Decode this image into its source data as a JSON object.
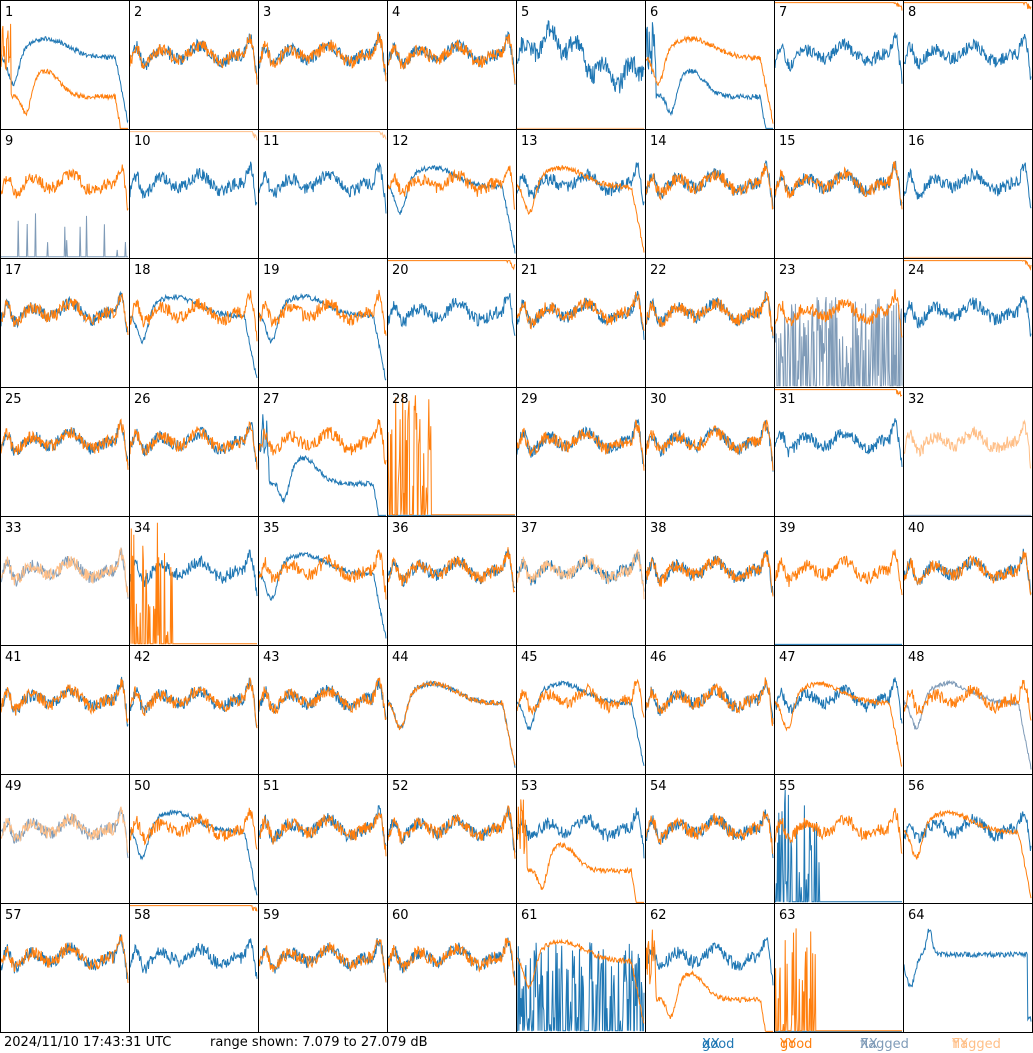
{
  "footer": {
    "timestamp": "2024/11/10 17:43:31 UTC",
    "range_text": "range shown: 7.079 to 27.079 dB"
  },
  "legend": [
    {
      "label_a": "good",
      "label_b": "XX",
      "color_a": "#1f77b4",
      "color_b": "#1f77b4"
    },
    {
      "label_a": "good",
      "label_b": "YY",
      "color_a": "#ff7f0e",
      "color_b": "#ff7f0e"
    },
    {
      "label_a": "flagged",
      "label_b": "XX",
      "color_a": "#7f9bb8",
      "color_b": "#7f9bb8"
    },
    {
      "label_a": "flagged",
      "label_b": "YY",
      "color_a": "#ffbf87",
      "color_b": "#ffbf87"
    }
  ],
  "colors": {
    "good_xx": "#1f77b4",
    "good_yy": "#ff7f0e",
    "flagged_xx": "#7f9bb8",
    "flagged_yy": "#ffbf87"
  },
  "chart_data": {
    "type": "line",
    "layout": "small-multiples 8x8",
    "ylim": [
      7.079,
      27.079
    ],
    "y_unit": "dB",
    "panels": [
      {
        "id": "1",
        "xx": {
          "shape": "wide_hump",
          "state": "good"
        },
        "yy": {
          "shape": "dip_hump",
          "state": "good"
        }
      },
      {
        "id": "2",
        "xx": {
          "shape": "normal",
          "state": "good"
        },
        "yy": {
          "shape": "normal",
          "state": "good"
        }
      },
      {
        "id": "3",
        "xx": {
          "shape": "normal",
          "state": "good"
        },
        "yy": {
          "shape": "normal",
          "state": "good"
        }
      },
      {
        "id": "4",
        "xx": {
          "shape": "normal",
          "state": "good"
        },
        "yy": {
          "shape": "normal",
          "state": "good"
        }
      },
      {
        "id": "5",
        "xx": {
          "shape": "high_noisy",
          "state": "good"
        },
        "yy": {
          "shape": "flat_zero",
          "state": "flagged"
        }
      },
      {
        "id": "6",
        "xx": {
          "shape": "dip_hump",
          "state": "good"
        },
        "yy": {
          "shape": "wide_hump",
          "state": "good"
        }
      },
      {
        "id": "7",
        "xx": {
          "shape": "normal",
          "state": "good"
        },
        "yy": {
          "shape": "low_flat",
          "state": "good"
        }
      },
      {
        "id": "8",
        "xx": {
          "shape": "normal",
          "state": "good"
        },
        "yy": {
          "shape": "low_flat",
          "state": "good"
        }
      },
      {
        "id": "9",
        "xx": {
          "shape": "spiky_low",
          "state": "flagged"
        },
        "yy": {
          "shape": "normal",
          "state": "good"
        }
      },
      {
        "id": "10",
        "xx": {
          "shape": "normal",
          "state": "good"
        },
        "yy": {
          "shape": "low_flat",
          "state": "flagged"
        }
      },
      {
        "id": "11",
        "xx": {
          "shape": "normal",
          "state": "good"
        },
        "yy": {
          "shape": "low_flat",
          "state": "flagged"
        }
      },
      {
        "id": "12",
        "xx": {
          "shape": "wide_hump",
          "state": "good"
        },
        "yy": {
          "shape": "normal",
          "state": "good"
        }
      },
      {
        "id": "13",
        "xx": {
          "shape": "normal",
          "state": "good"
        },
        "yy": {
          "shape": "wide_hump",
          "state": "good"
        }
      },
      {
        "id": "14",
        "xx": {
          "shape": "normal",
          "state": "good"
        },
        "yy": {
          "shape": "normal",
          "state": "good"
        }
      },
      {
        "id": "15",
        "xx": {
          "shape": "normal",
          "state": "good"
        },
        "yy": {
          "shape": "normal",
          "state": "good"
        }
      },
      {
        "id": "16",
        "xx": {
          "shape": "normal",
          "state": "good"
        },
        "yy": {
          "shape": "flat_zero",
          "state": "flagged"
        }
      },
      {
        "id": "17",
        "xx": {
          "shape": "normal",
          "state": "good"
        },
        "yy": {
          "shape": "normal",
          "state": "good"
        }
      },
      {
        "id": "18",
        "xx": {
          "shape": "wide_hump",
          "state": "good"
        },
        "yy": {
          "shape": "normal",
          "state": "good"
        }
      },
      {
        "id": "19",
        "xx": {
          "shape": "wide_hump",
          "state": "good"
        },
        "yy": {
          "shape": "normal",
          "state": "good"
        }
      },
      {
        "id": "20",
        "xx": {
          "shape": "normal",
          "state": "good"
        },
        "yy": {
          "shape": "low_flat",
          "state": "good"
        }
      },
      {
        "id": "21",
        "xx": {
          "shape": "normal",
          "state": "good"
        },
        "yy": {
          "shape": "normal",
          "state": "good"
        }
      },
      {
        "id": "22",
        "xx": {
          "shape": "normal",
          "state": "good"
        },
        "yy": {
          "shape": "normal",
          "state": "good"
        }
      },
      {
        "id": "23",
        "xx": {
          "shape": "spiky_mid",
          "state": "flagged"
        },
        "yy": {
          "shape": "normal",
          "state": "good"
        }
      },
      {
        "id": "24",
        "xx": {
          "shape": "normal",
          "state": "good"
        },
        "yy": {
          "shape": "low_flat",
          "state": "good"
        }
      },
      {
        "id": "25",
        "xx": {
          "shape": "normal",
          "state": "good"
        },
        "yy": {
          "shape": "normal",
          "state": "good"
        }
      },
      {
        "id": "26",
        "xx": {
          "shape": "normal",
          "state": "good"
        },
        "yy": {
          "shape": "normal",
          "state": "good"
        }
      },
      {
        "id": "27",
        "xx": {
          "shape": "dip_hump",
          "state": "good"
        },
        "yy": {
          "shape": "normal",
          "state": "good"
        }
      },
      {
        "id": "28",
        "xx": {
          "shape": "flat_zero",
          "state": "good"
        },
        "yy": {
          "shape": "spiky_high",
          "state": "good"
        }
      },
      {
        "id": "29",
        "xx": {
          "shape": "normal",
          "state": "good"
        },
        "yy": {
          "shape": "normal",
          "state": "good"
        }
      },
      {
        "id": "30",
        "xx": {
          "shape": "normal",
          "state": "good"
        },
        "yy": {
          "shape": "normal",
          "state": "good"
        }
      },
      {
        "id": "31",
        "xx": {
          "shape": "normal",
          "state": "good"
        },
        "yy": {
          "shape": "low_flat",
          "state": "good"
        }
      },
      {
        "id": "32",
        "xx": {
          "shape": "flat_zero",
          "state": "flagged"
        },
        "yy": {
          "shape": "normal",
          "state": "flagged"
        }
      },
      {
        "id": "33",
        "xx": {
          "shape": "normal",
          "state": "flagged"
        },
        "yy": {
          "shape": "normal",
          "state": "flagged"
        }
      },
      {
        "id": "34",
        "xx": {
          "shape": "normal",
          "state": "good"
        },
        "yy": {
          "shape": "spiky_high",
          "state": "good"
        }
      },
      {
        "id": "35",
        "xx": {
          "shape": "wide_hump",
          "state": "good"
        },
        "yy": {
          "shape": "normal",
          "state": "good"
        }
      },
      {
        "id": "36",
        "xx": {
          "shape": "normal",
          "state": "good"
        },
        "yy": {
          "shape": "normal",
          "state": "good"
        }
      },
      {
        "id": "37",
        "xx": {
          "shape": "normal",
          "state": "good"
        },
        "yy": {
          "shape": "normal",
          "state": "flagged"
        }
      },
      {
        "id": "38",
        "xx": {
          "shape": "normal",
          "state": "good"
        },
        "yy": {
          "shape": "normal",
          "state": "good"
        }
      },
      {
        "id": "39",
        "xx": {
          "shape": "flat_zero",
          "state": "good"
        },
        "yy": {
          "shape": "normal",
          "state": "good"
        }
      },
      {
        "id": "40",
        "xx": {
          "shape": "normal",
          "state": "good"
        },
        "yy": {
          "shape": "normal",
          "state": "good"
        }
      },
      {
        "id": "41",
        "xx": {
          "shape": "normal",
          "state": "good"
        },
        "yy": {
          "shape": "normal",
          "state": "good"
        }
      },
      {
        "id": "42",
        "xx": {
          "shape": "normal",
          "state": "good"
        },
        "yy": {
          "shape": "normal",
          "state": "good"
        }
      },
      {
        "id": "43",
        "xx": {
          "shape": "normal",
          "state": "good"
        },
        "yy": {
          "shape": "normal",
          "state": "good"
        }
      },
      {
        "id": "44",
        "xx": {
          "shape": "wide_hump",
          "state": "good"
        },
        "yy": {
          "shape": "wide_hump",
          "state": "good"
        }
      },
      {
        "id": "45",
        "xx": {
          "shape": "wide_hump",
          "state": "good"
        },
        "yy": {
          "shape": "normal",
          "state": "good"
        }
      },
      {
        "id": "46",
        "xx": {
          "shape": "normal",
          "state": "good"
        },
        "yy": {
          "shape": "normal",
          "state": "good"
        }
      },
      {
        "id": "47",
        "xx": {
          "shape": "normal",
          "state": "good"
        },
        "yy": {
          "shape": "wide_hump",
          "state": "good"
        }
      },
      {
        "id": "48",
        "xx": {
          "shape": "wide_hump",
          "state": "flagged"
        },
        "yy": {
          "shape": "normal",
          "state": "good"
        }
      },
      {
        "id": "49",
        "xx": {
          "shape": "normal",
          "state": "flagged"
        },
        "yy": {
          "shape": "normal",
          "state": "flagged"
        }
      },
      {
        "id": "50",
        "xx": {
          "shape": "wide_hump",
          "state": "good"
        },
        "yy": {
          "shape": "normal",
          "state": "good"
        }
      },
      {
        "id": "51",
        "xx": {
          "shape": "normal",
          "state": "good"
        },
        "yy": {
          "shape": "normal",
          "state": "good"
        }
      },
      {
        "id": "52",
        "xx": {
          "shape": "normal",
          "state": "good"
        },
        "yy": {
          "shape": "normal",
          "state": "good"
        }
      },
      {
        "id": "53",
        "xx": {
          "shape": "normal",
          "state": "good"
        },
        "yy": {
          "shape": "dip_hump",
          "state": "good"
        }
      },
      {
        "id": "54",
        "xx": {
          "shape": "normal",
          "state": "good"
        },
        "yy": {
          "shape": "normal",
          "state": "good"
        }
      },
      {
        "id": "55",
        "xx": {
          "shape": "spiky_high",
          "state": "good"
        },
        "yy": {
          "shape": "normal",
          "state": "good"
        }
      },
      {
        "id": "56",
        "xx": {
          "shape": "normal",
          "state": "good"
        },
        "yy": {
          "shape": "wide_hump",
          "state": "good"
        }
      },
      {
        "id": "57",
        "xx": {
          "shape": "normal",
          "state": "good"
        },
        "yy": {
          "shape": "normal",
          "state": "good"
        }
      },
      {
        "id": "58",
        "xx": {
          "shape": "normal",
          "state": "good"
        },
        "yy": {
          "shape": "low_flat",
          "state": "good"
        }
      },
      {
        "id": "59",
        "xx": {
          "shape": "normal",
          "state": "good"
        },
        "yy": {
          "shape": "normal",
          "state": "good"
        }
      },
      {
        "id": "60",
        "xx": {
          "shape": "normal",
          "state": "good"
        },
        "yy": {
          "shape": "normal",
          "state": "good"
        }
      },
      {
        "id": "61",
        "xx": {
          "shape": "spiky_mid",
          "state": "good"
        },
        "yy": {
          "shape": "wide_hump",
          "state": "good"
        }
      },
      {
        "id": "62",
        "xx": {
          "shape": "normal",
          "state": "good"
        },
        "yy": {
          "shape": "dip_hump",
          "state": "good"
        }
      },
      {
        "id": "63",
        "xx": {
          "shape": "flat_zero",
          "state": "good"
        },
        "yy": {
          "shape": "spiky_high",
          "state": "good"
        }
      },
      {
        "id": "64",
        "xx": {
          "shape": "high_flat",
          "state": "good"
        },
        "yy": {
          "shape": "none",
          "state": "good"
        }
      }
    ]
  }
}
